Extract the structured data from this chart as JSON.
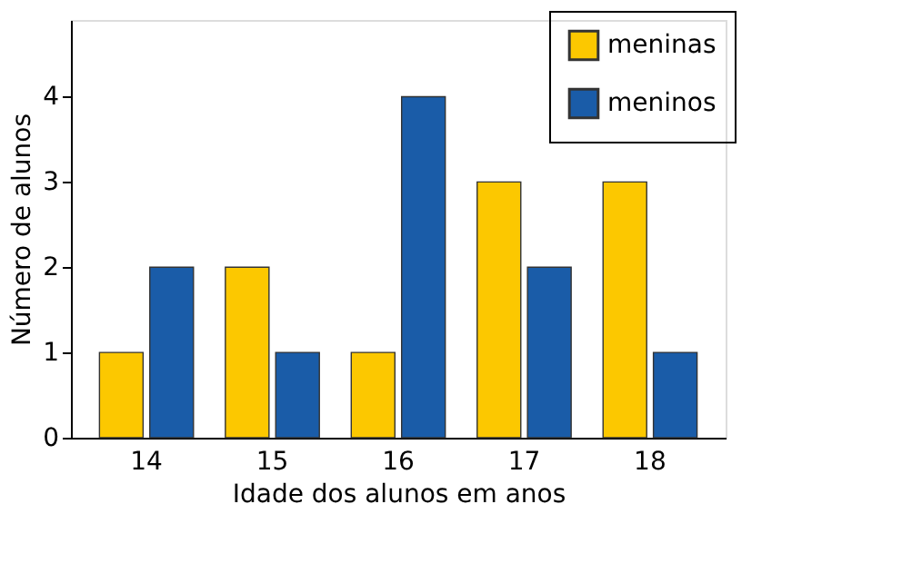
{
  "chart_data": {
    "type": "bar",
    "xlabel": "Idade dos alunos em anos",
    "ylabel": "Número de alunos",
    "categories": [
      "14",
      "15",
      "16",
      "17",
      "18"
    ],
    "series": [
      {
        "name": "meninas",
        "color": "#fcc800",
        "values": [
          1,
          2,
          1,
          3,
          3
        ]
      },
      {
        "name": "meninos",
        "color": "#1a5ca8",
        "values": [
          2,
          1,
          4,
          2,
          1
        ]
      }
    ],
    "ylim": [
      0,
      4.9
    ],
    "yticks": [
      0,
      1,
      2,
      3,
      4
    ],
    "grid": false,
    "legend": "top right"
  }
}
